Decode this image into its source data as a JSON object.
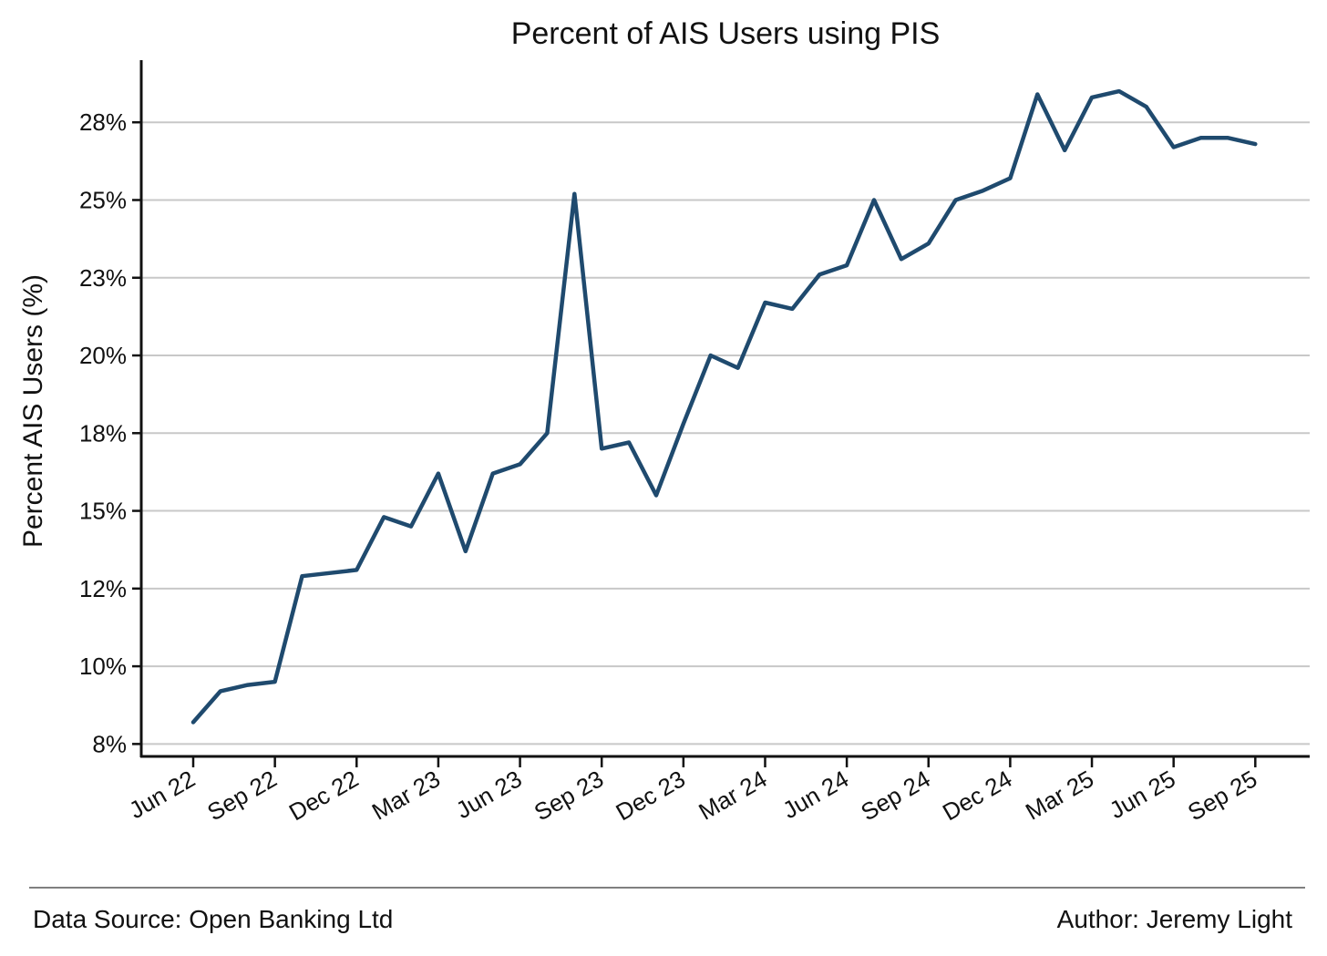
{
  "chart_data": {
    "type": "line",
    "title": "Percent of AIS Users using PIS",
    "xlabel": "",
    "ylabel": "Percent AIS Users (%)",
    "x_tick_labels": [
      "Jun 22",
      "Sep 22",
      "Dec 22",
      "Mar 23",
      "Jun 23",
      "Sep 23",
      "Dec 23",
      "Mar 24",
      "Jun 24",
      "Sep 24",
      "Dec 24",
      "Mar 25",
      "Jun 25",
      "Sep 25"
    ],
    "y_tick_labels": [
      "8%",
      "10%",
      "12%",
      "15%",
      "18%",
      "20%",
      "23%",
      "25%",
      "28%"
    ],
    "y_ticks": [
      7.5,
      10,
      12.5,
      15,
      17.5,
      20,
      22.5,
      25,
      27.5
    ],
    "ylim": [
      7.1,
      29.5
    ],
    "x_start_month": "Jun 22",
    "grid": "horizontal",
    "line_color": "#1f4a6e",
    "x": [
      "Jun 22",
      "Jul 22",
      "Aug 22",
      "Sep 22",
      "Oct 22",
      "Nov 22",
      "Dec 22",
      "Jan 23",
      "Feb 23",
      "Mar 23",
      "Apr 23",
      "May 23",
      "Jun 23",
      "Jul 23",
      "Aug 23",
      "Sep 23",
      "Oct 23",
      "Nov 23",
      "Dec 23",
      "Jan 24",
      "Feb 24",
      "Mar 24",
      "Apr 24",
      "May 24",
      "Jun 24",
      "Jul 24",
      "Aug 24",
      "Sep 24",
      "Oct 24",
      "Nov 24",
      "Dec 24",
      "Jan 25",
      "Feb 25",
      "Mar 25",
      "Apr 25",
      "May 25",
      "Jun 25",
      "Jul 25",
      "Aug 25",
      "Sep 25"
    ],
    "values": [
      8.2,
      9.2,
      9.4,
      9.5,
      12.9,
      13.0,
      13.1,
      14.8,
      14.5,
      16.2,
      13.7,
      16.2,
      16.5,
      17.5,
      25.2,
      17.0,
      17.2,
      15.5,
      17.8,
      20.0,
      19.6,
      21.7,
      21.5,
      22.6,
      22.9,
      25.0,
      23.1,
      23.6,
      25.0,
      25.3,
      25.7,
      28.4,
      26.6,
      28.3,
      28.5,
      28.0,
      26.7,
      27.0,
      27.0,
      26.8
    ]
  },
  "footer": {
    "source": "Data Source: Open Banking Ltd",
    "author": "Author: Jeremy Light"
  }
}
